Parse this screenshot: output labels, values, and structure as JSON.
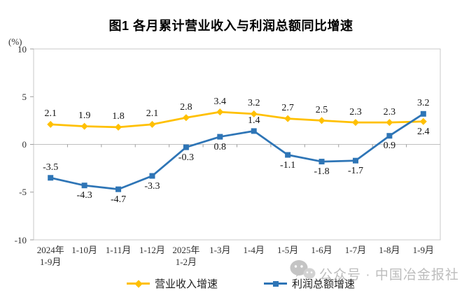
{
  "chart_data": {
    "type": "line",
    "title": "图1 各月累计营业收入与利润总额同比增速",
    "xlabel": "",
    "ylabel": "(%)",
    "ylim": [
      -10,
      10
    ],
    "yticks": [
      10,
      5,
      0,
      -5,
      -10
    ],
    "grid": false,
    "legend_position": "bottom",
    "categories": [
      "2024年\n1-9月",
      "1-10月",
      "1-11月",
      "1-12月",
      "2025年\n1-2月",
      "1-3月",
      "1-4月",
      "1-5月",
      "1-6月",
      "1-7月",
      "1-8月",
      "1-9月"
    ],
    "series": [
      {
        "name": "营业收入增速",
        "color": "#FFC000",
        "marker": "diamond",
        "values": [
          2.1,
          1.9,
          1.8,
          2.1,
          2.8,
          3.4,
          3.2,
          2.7,
          2.5,
          2.3,
          2.3,
          2.4
        ],
        "label_side": [
          "above",
          "above",
          "above",
          "above",
          "above",
          "above",
          "above",
          "above",
          "above",
          "above",
          "above",
          "below"
        ]
      },
      {
        "name": "利润总额增速",
        "color": "#2E75B6",
        "marker": "square",
        "values": [
          -3.5,
          -4.3,
          -4.7,
          -3.3,
          -0.3,
          0.8,
          1.4,
          -1.1,
          -1.8,
          -1.7,
          0.9,
          3.2
        ],
        "label_side": [
          "above",
          "below",
          "below",
          "below",
          "below",
          "below",
          "above",
          "below",
          "below",
          "below",
          "below",
          "above"
        ]
      }
    ]
  },
  "watermark": {
    "icon": "wechat-official-account-icon",
    "text": "公众号 · 中国冶金报社"
  },
  "colors": {
    "revenue_line": "#FFC000",
    "profit_line": "#2E75B6",
    "plot_border": "#C9C9C9",
    "zero_line": "#BFBFBF",
    "tick": "#9E9E9E",
    "watermark_gray": "#BDBDBD"
  }
}
